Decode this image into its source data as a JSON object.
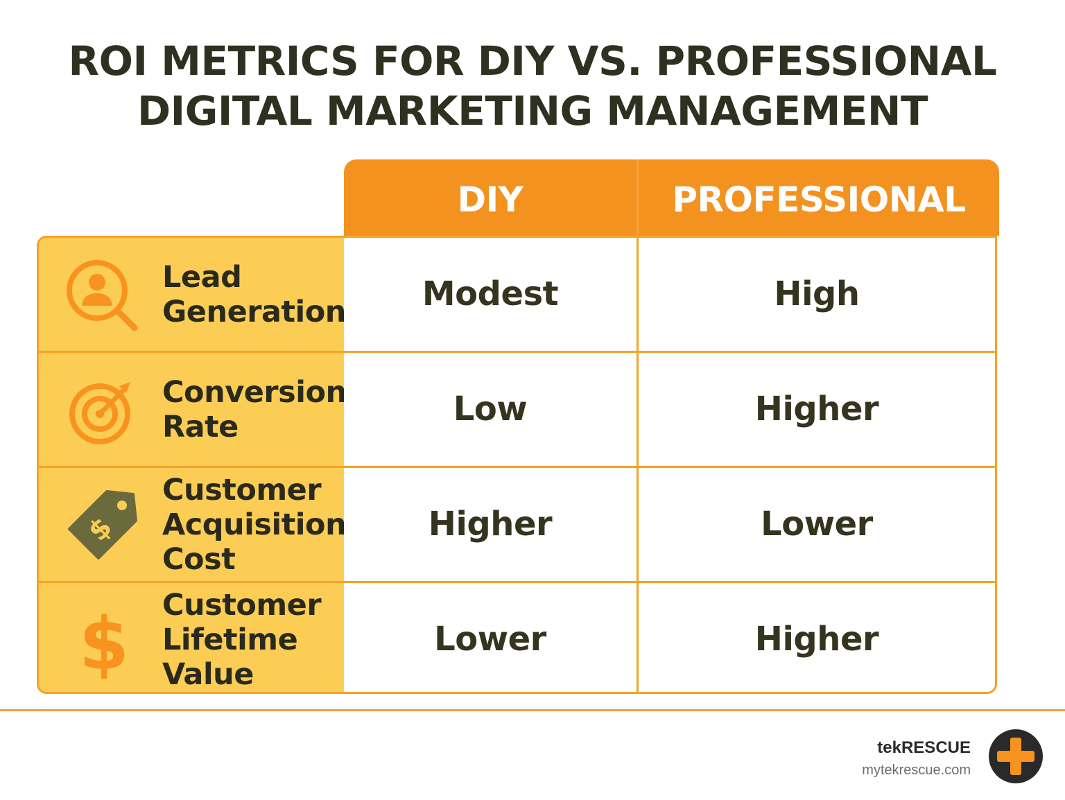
{
  "title": {
    "line1": "ROI METRICS FOR DIY VS. PROFESSIONAL",
    "line2": "DIGITAL MARKETING MANAGEMENT"
  },
  "columns": {
    "diy": "DIY",
    "professional": "PROFESSIONAL"
  },
  "rows": [
    {
      "metric": "Lead Generation",
      "icon": "user-search-icon",
      "diy": "Modest",
      "professional": "High"
    },
    {
      "metric": "Conversion Rate",
      "icon": "target-arrow-icon",
      "diy": "Low",
      "professional": "Higher"
    },
    {
      "metric": "Customer Acquisition Cost",
      "icon": "price-tag-dollar-icon",
      "diy": "Higher",
      "professional": "Lower"
    },
    {
      "metric": "Customer Lifetime Value",
      "icon": "dollar-sign-icon",
      "diy": "Lower",
      "professional": "Higher"
    }
  ],
  "brand": {
    "name": "tekRESCUE",
    "url": "mytekrescue.com"
  },
  "colors": {
    "header": "#f4921f",
    "label_bg": "#fbcd55",
    "border": "#f4a325",
    "icon_orange": "#f7931e",
    "icon_olive": "#6b6a3d",
    "text_dark": "#2f3020"
  }
}
